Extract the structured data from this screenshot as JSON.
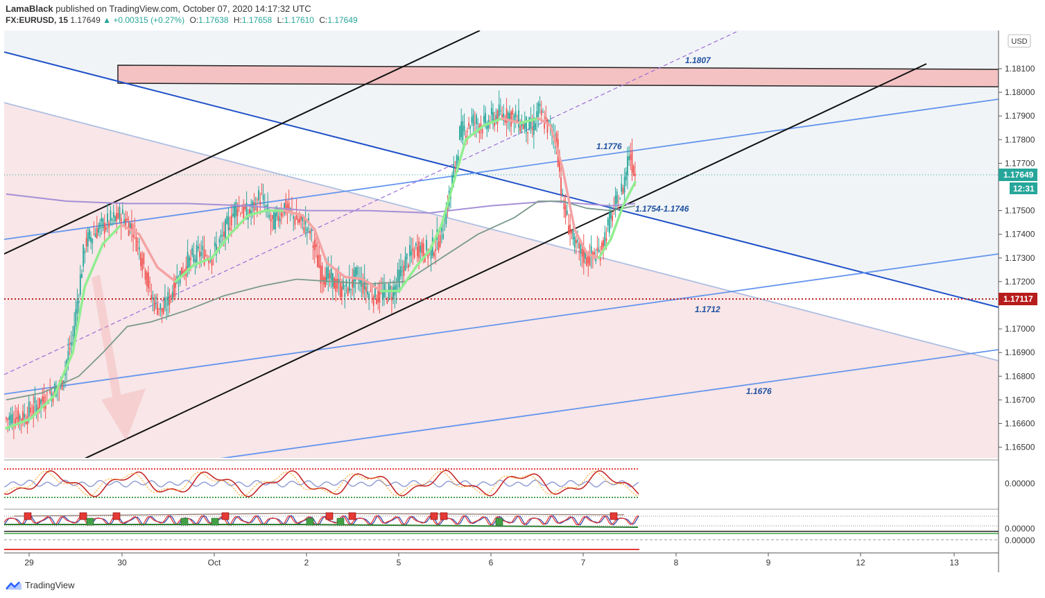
{
  "header": {
    "author": "LamaBlack",
    "published_text": "published on TradingView.com, October 07, 2020 14:17:32 UTC",
    "symbol": "FX:EURUSD, 15",
    "last": "1.17649",
    "change": "+0.00315 (+0.27%)",
    "o_label": "O:",
    "o": "1.17638",
    "h_label": "H:",
    "h": "1.17658",
    "l_label": "L:",
    "l": "1.17610",
    "c_label": "C:",
    "c": "1.17649"
  },
  "currency": "USD",
  "price_badge": "1.17649",
  "timer_badge": "12:31",
  "level_badge": "1.17117",
  "annotations": {
    "a1807": "1.1807",
    "a1776": "1.1776",
    "a1754": "1.1754-1.1746",
    "a1712": "1.1712",
    "a1676": "1.1676"
  },
  "osc_labels": {
    "osc1": "0.00000",
    "osc2": "0.00000",
    "osc3": "0.00000"
  },
  "footer_brand": "TradingView",
  "colors": {
    "up": "#26a69a",
    "down": "#ef5350",
    "level": "#b71c1c",
    "trend_blue": "#1e50c8",
    "light_blue": "#6495ed"
  },
  "chart_data": {
    "type": "candlestick",
    "y_ticks": [
      "1.18100",
      "1.18000",
      "1.17900",
      "1.17800",
      "1.17700",
      "1.17500",
      "1.17400",
      "1.17300",
      "1.17200",
      "1.17000",
      "1.16900",
      "1.16800",
      "1.16700",
      "1.16600",
      "1.16500"
    ],
    "x_ticks": [
      "29",
      "30",
      "Oct",
      "2",
      "5",
      "6",
      "7",
      "8",
      "9",
      "12",
      "13"
    ],
    "ylim": [
      1.1645,
      1.182
    ],
    "close_path": [
      [
        0,
        1.1662
      ],
      [
        3,
        1.1663
      ],
      [
        7,
        1.1672
      ],
      [
        9,
        1.1676
      ],
      [
        11,
        1.1697
      ],
      [
        13,
        1.1736
      ],
      [
        15,
        1.1742
      ],
      [
        17,
        1.1745
      ],
      [
        19,
        1.1748
      ],
      [
        21,
        1.1742
      ],
      [
        23,
        1.1725
      ],
      [
        24,
        1.1713
      ],
      [
        26,
        1.1707
      ],
      [
        28,
        1.172
      ],
      [
        30,
        1.1728
      ],
      [
        32,
        1.1732
      ],
      [
        34,
        1.1731
      ],
      [
        36,
        1.174
      ],
      [
        38,
        1.1752
      ],
      [
        40,
        1.1748
      ],
      [
        42,
        1.1756
      ],
      [
        44,
        1.1744
      ],
      [
        46,
        1.1752
      ],
      [
        48,
        1.1746
      ],
      [
        50,
        1.1743
      ],
      [
        52,
        1.1724
      ],
      [
        54,
        1.172
      ],
      [
        56,
        1.1716
      ],
      [
        58,
        1.1722
      ],
      [
        60,
        1.1715
      ],
      [
        62,
        1.1714
      ],
      [
        64,
        1.1716
      ],
      [
        66,
        1.1728
      ],
      [
        68,
        1.1735
      ],
      [
        70,
        1.1732
      ],
      [
        72,
        1.174
      ],
      [
        74,
        1.1766
      ],
      [
        75,
        1.1782
      ],
      [
        77,
        1.1788
      ],
      [
        79,
        1.1786
      ],
      [
        81,
        1.179
      ],
      [
        83,
        1.1791
      ],
      [
        85,
        1.1787
      ],
      [
        87,
        1.1784
      ],
      [
        88,
        1.1792
      ],
      [
        90,
        1.1784
      ],
      [
        91,
        1.178
      ],
      [
        92,
        1.1753
      ],
      [
        94,
        1.1735
      ],
      [
        96,
        1.173
      ],
      [
        98,
        1.1732
      ],
      [
        100,
        1.1747
      ],
      [
        102,
        1.176
      ],
      [
        103,
        1.1775
      ],
      [
        104,
        1.1765
      ]
    ],
    "ma_fast": [
      [
        0,
        1.1658
      ],
      [
        4,
        1.1662
      ],
      [
        8,
        1.1672
      ],
      [
        11,
        1.169
      ],
      [
        13,
        1.1718
      ],
      [
        16,
        1.1736
      ],
      [
        19,
        1.1744
      ],
      [
        22,
        1.174
      ],
      [
        25,
        1.1726
      ],
      [
        28,
        1.172
      ],
      [
        31,
        1.1727
      ],
      [
        34,
        1.173
      ],
      [
        37,
        1.174
      ],
      [
        40,
        1.1748
      ],
      [
        43,
        1.175
      ],
      [
        46,
        1.175
      ],
      [
        49,
        1.1748
      ],
      [
        51,
        1.1742
      ],
      [
        53,
        1.1728
      ],
      [
        56,
        1.1722
      ],
      [
        59,
        1.1721
      ],
      [
        62,
        1.1716
      ],
      [
        65,
        1.1716
      ],
      [
        68,
        1.1727
      ],
      [
        70,
        1.1733
      ],
      [
        72,
        1.1744
      ],
      [
        74,
        1.1762
      ],
      [
        76,
        1.178
      ],
      [
        79,
        1.1786
      ],
      [
        82,
        1.1789
      ],
      [
        85,
        1.1787
      ],
      [
        88,
        1.1789
      ],
      [
        90,
        1.1786
      ],
      [
        92,
        1.1768
      ],
      [
        94,
        1.1742
      ],
      [
        96,
        1.1732
      ],
      [
        98,
        1.173
      ],
      [
        100,
        1.1738
      ],
      [
        102,
        1.1752
      ],
      [
        104,
        1.1762
      ]
    ],
    "ma_slow": [
      [
        0,
        1.167
      ],
      [
        6,
        1.1673
      ],
      [
        12,
        1.168
      ],
      [
        16,
        1.169
      ],
      [
        20,
        1.1701
      ],
      [
        24,
        1.1703
      ],
      [
        30,
        1.1708
      ],
      [
        36,
        1.1714
      ],
      [
        42,
        1.1718
      ],
      [
        48,
        1.1721
      ],
      [
        54,
        1.172
      ],
      [
        60,
        1.1719
      ],
      [
        66,
        1.172
      ],
      [
        72,
        1.173
      ],
      [
        78,
        1.174
      ],
      [
        84,
        1.1747
      ],
      [
        88,
        1.1754
      ],
      [
        92,
        1.1754
      ],
      [
        96,
        1.1751
      ],
      [
        100,
        1.175
      ],
      [
        104,
        1.1752
      ]
    ],
    "ma_long": [
      [
        0,
        1.1757
      ],
      [
        10,
        1.1754
      ],
      [
        20,
        1.1753
      ],
      [
        30,
        1.1753
      ],
      [
        40,
        1.1752
      ],
      [
        50,
        1.175
      ],
      [
        60,
        1.175
      ],
      [
        70,
        1.1749
      ],
      [
        80,
        1.1752
      ],
      [
        90,
        1.1754
      ],
      [
        100,
        1.1752
      ],
      [
        104,
        1.1753
      ]
    ],
    "levels": [
      1.1807,
      1.1776,
      1.1754,
      1.1746,
      1.1712,
      1.1676,
      1.17117
    ]
  }
}
